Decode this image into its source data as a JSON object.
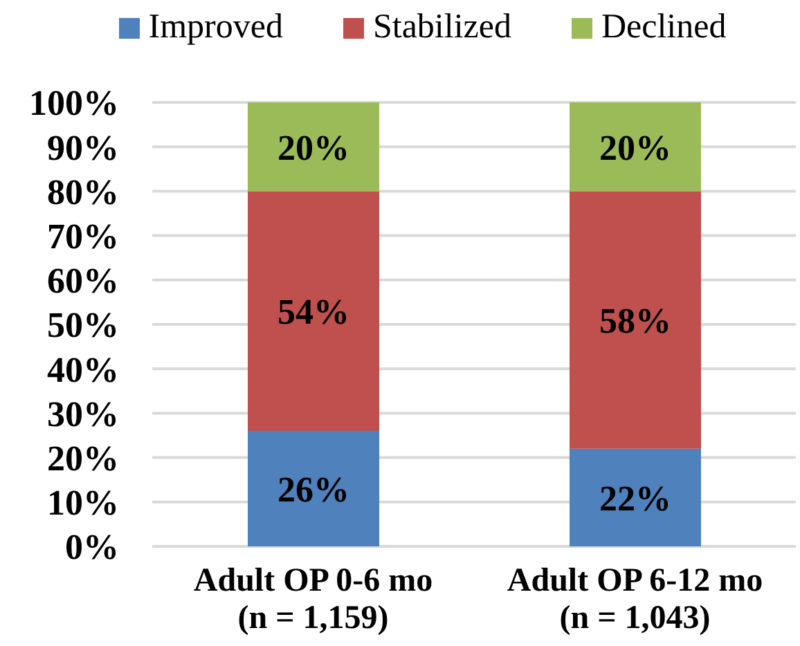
{
  "chart_data": {
    "type": "bar",
    "stacked": true,
    "categories": [
      "Adult OP 0-6 mo\n(n = 1,159)",
      "Adult OP 6-12 mo\n(n = 1,043)"
    ],
    "series": [
      {
        "name": "Improved",
        "color": "#4f81bd",
        "values": [
          26,
          22
        ],
        "value_labels": [
          "26%",
          "22%"
        ]
      },
      {
        "name": "Stabilized",
        "color": "#c0504d",
        "values": [
          54,
          58
        ],
        "value_labels": [
          "54%",
          "58%"
        ]
      },
      {
        "name": "Declined",
        "color": "#9bbb59",
        "values": [
          20,
          20
        ],
        "value_labels": [
          "20%",
          "20%"
        ]
      }
    ],
    "ylim": [
      0,
      100
    ],
    "yticks": [
      {
        "value": 0,
        "label": "0%"
      },
      {
        "value": 10,
        "label": "10%"
      },
      {
        "value": 20,
        "label": "20%"
      },
      {
        "value": 30,
        "label": "30%"
      },
      {
        "value": 40,
        "label": "40%"
      },
      {
        "value": 50,
        "label": "50%"
      },
      {
        "value": 60,
        "label": "60%"
      },
      {
        "value": 70,
        "label": "70%"
      },
      {
        "value": 80,
        "label": "80%"
      },
      {
        "value": 90,
        "label": "90%"
      },
      {
        "value": 100,
        "label": "100%"
      }
    ],
    "grid": "y",
    "legend": "top"
  }
}
